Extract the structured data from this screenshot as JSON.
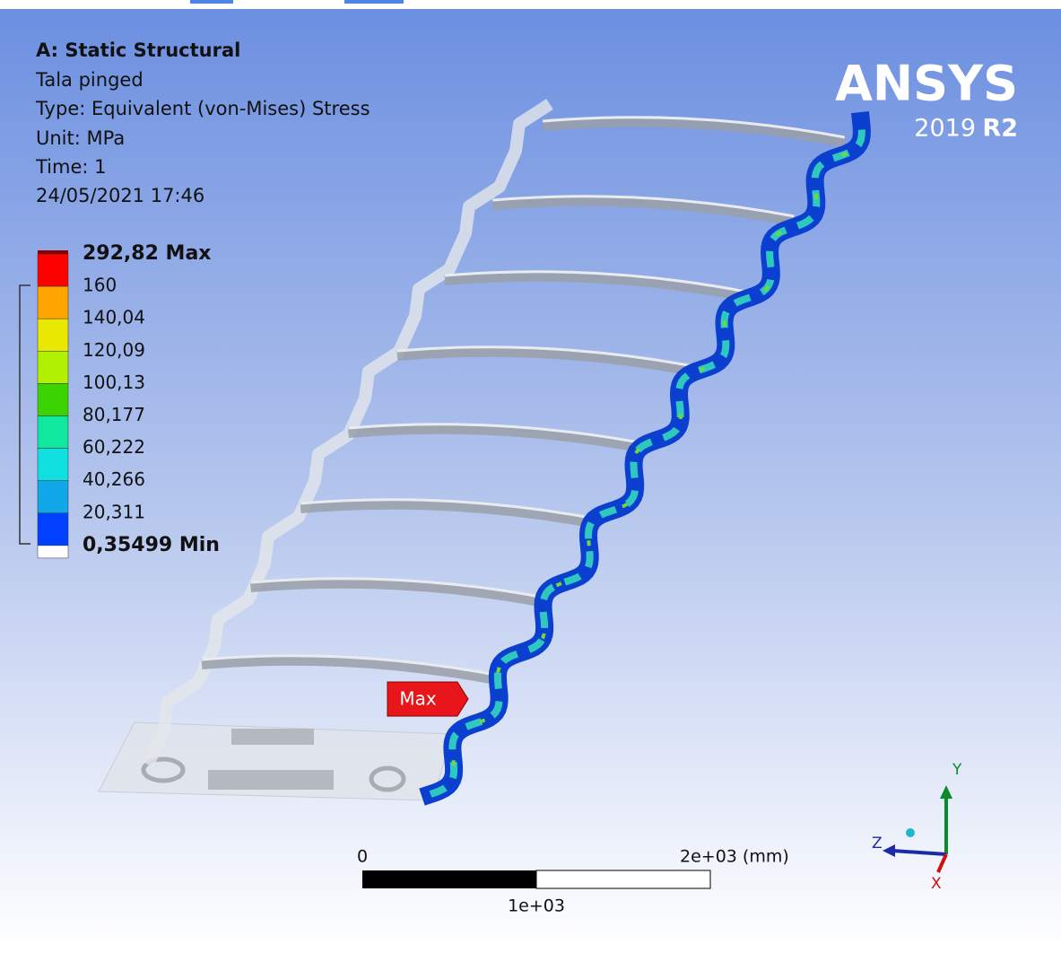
{
  "header": {
    "title": "A: Static Structural",
    "lines": [
      "Tala pinged",
      "Type: Equivalent (von-Mises) Stress",
      "Unit: MPa",
      "Time: 1",
      "24/05/2021 17:46"
    ]
  },
  "legend": {
    "labels": [
      "292,82 Max",
      "160",
      "140,04",
      "120,09",
      "100,13",
      "80,177",
      "60,222",
      "40,266",
      "20,311",
      "0,35499 Min"
    ]
  },
  "logo": {
    "brand": "ANSYS",
    "version": "2019",
    "release": "R2"
  },
  "probe": {
    "label": "Max"
  },
  "scale_bar": {
    "start": "0",
    "end": "2e+03 (mm)",
    "middle": "1e+03"
  },
  "triad": {
    "y": "Y",
    "z": "Z",
    "x": "X"
  }
}
